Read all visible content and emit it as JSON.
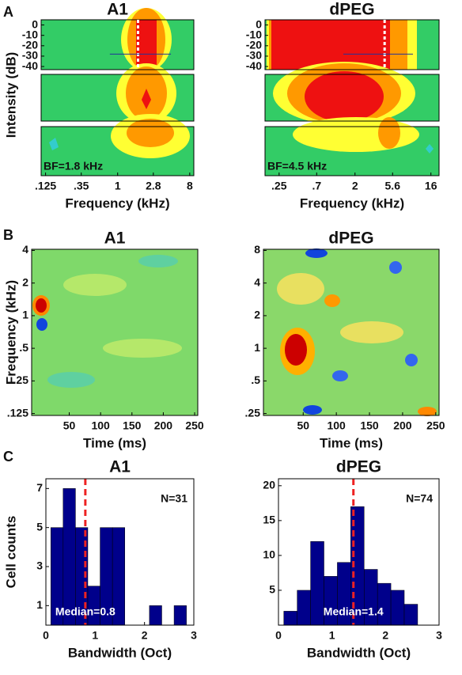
{
  "panels": [
    "A",
    "B",
    "C"
  ],
  "chart_data": [
    {
      "type": "tuning",
      "title": "A1",
      "xlabel": "Frequency (kHz)",
      "ylabel": "Intensity (dB)",
      "xlog": true,
      "xlim": [
        0.11,
        9
      ],
      "xticks": [
        {
          "value": 0.125,
          "label": ".125"
        },
        {
          "value": 0.35,
          "label": ".35"
        },
        1,
        2.8,
        8
      ],
      "ylim": [
        -43,
        5
      ],
      "yticks": [
        0,
        -10,
        -20,
        -30,
        -40
      ],
      "best_frequency": 1.8,
      "annotation": "BF=1.8 kHz"
    },
    {
      "type": "tuning",
      "title": "dPEG",
      "xlabel": "Frequency (kHz)",
      "xlog": true,
      "xlim": [
        0.17,
        20
      ],
      "xticks": [
        {
          "value": 0.25,
          "label": ".25"
        },
        {
          "value": 0.7,
          "label": ".7"
        },
        2,
        5.6,
        16
      ],
      "ylim": [
        -43,
        5
      ],
      "yticks": [
        0,
        -10,
        -20,
        -30,
        -40
      ],
      "best_frequency": 4.5,
      "annotation": "BF=4.5 kHz"
    },
    {
      "type": "strf",
      "title": "A1",
      "xlabel": "Time (ms)",
      "ylabel": "Frequency (kHz)",
      "ylog": true,
      "xlim": [
        -10,
        255
      ],
      "xticks": [
        50,
        100,
        150,
        200,
        250
      ],
      "ylim": [
        0.12,
        4.1
      ],
      "yticks": [
        4,
        2,
        1,
        {
          "value": 0.5,
          "label": ".5"
        },
        {
          "value": 0.25,
          "label": ".25"
        },
        {
          "value": 0.125,
          "label": ".125"
        }
      ]
    },
    {
      "type": "strf",
      "title": "dPEG",
      "xlabel": "Time (ms)",
      "ylog": true,
      "xlim": [
        -10,
        255
      ],
      "xticks": [
        50,
        100,
        150,
        200,
        250
      ],
      "ylim": [
        0.24,
        8.2
      ],
      "yticks": [
        8,
        4,
        2,
        1,
        {
          "value": 0.5,
          "label": ".5"
        },
        {
          "value": 0.25,
          "label": ".25"
        }
      ]
    },
    {
      "type": "histogram",
      "title": "A1",
      "xlabel": "Bandwidth (Oct)",
      "ylabel": "Cell counts",
      "color": "#00008b",
      "bins": [
        0.1,
        0.35,
        0.6,
        0.85,
        1.1,
        1.35,
        1.6,
        1.85,
        2.1,
        2.35,
        2.6,
        2.85
      ],
      "values": [
        5,
        7,
        5,
        2,
        5,
        5,
        0,
        0,
        1,
        0,
        1
      ],
      "xlim": [
        0,
        3
      ],
      "xticks": [
        0,
        1,
        2,
        3
      ],
      "ylim": [
        0,
        7.5
      ],
      "yticks": [
        1,
        3,
        5,
        7
      ],
      "median": 0.8,
      "median_label": "Median=0.8",
      "n_label": "N=31"
    },
    {
      "type": "histogram",
      "title": "dPEG",
      "xlabel": "Bandwidth (Oct)",
      "color": "#00008b",
      "bins": [
        0.1,
        0.35,
        0.6,
        0.85,
        1.1,
        1.35,
        1.6,
        1.85,
        2.1,
        2.35,
        2.6
      ],
      "values": [
        2,
        5,
        12,
        7,
        9,
        17,
        8,
        6,
        5,
        3
      ],
      "xlim": [
        0,
        3
      ],
      "xticks": [
        0,
        1,
        2,
        3
      ],
      "ylim": [
        0,
        21
      ],
      "yticks": [
        5,
        10,
        15,
        20
      ],
      "median": 1.4,
      "median_label": "Median=1.4",
      "n_label": "N=74"
    }
  ]
}
